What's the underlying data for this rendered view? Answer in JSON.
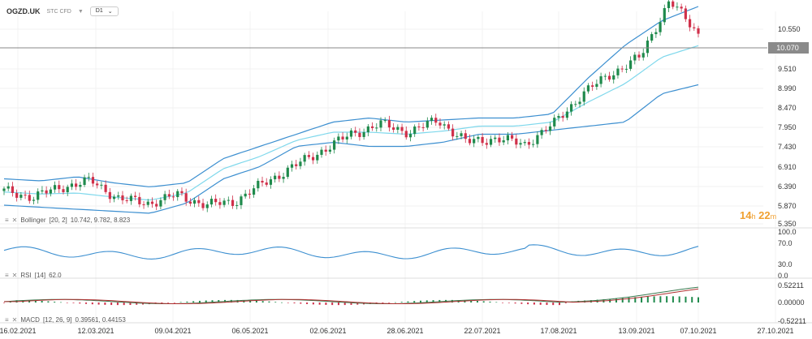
{
  "header": {
    "symbol": "OGZD.UK",
    "subtitle": "STC CFD",
    "timeframe": "D1"
  },
  "timer": {
    "hours": "14",
    "h": "h",
    "minutes": "22",
    "m": "m"
  },
  "current_price": "10.070",
  "price_axis": [
    "10.550",
    "10.070",
    "9.510",
    "8.990",
    "8.470",
    "7.950",
    "7.430",
    "6.910",
    "6.390",
    "5.870",
    "5.350"
  ],
  "rsi_axis": [
    "100.0",
    "70.0",
    "30.0",
    "0.0"
  ],
  "macd_axis": [
    "0.52211",
    "0.00000",
    "-0.52211"
  ],
  "dates": [
    "16.02.2021",
    "12.03.2021",
    "09.04.2021",
    "06.05.2021",
    "02.06.2021",
    "28.06.2021",
    "22.07.2021",
    "17.08.2021",
    "13.09.2021",
    "07.10.2021",
    "27.10.2021"
  ],
  "indicators": {
    "bollinger": {
      "name": "Bollinger",
      "params": "[20, 2]",
      "values": "10.742,  9.782,  8.823"
    },
    "rsi": {
      "name": "RSI",
      "params": "[14]",
      "values": "62.0"
    },
    "macd": {
      "name": "MACD",
      "params": "[12, 26, 9]",
      "values": "0.39561,  0.44153"
    }
  },
  "colors": {
    "up": "#1f8a4c",
    "down": "#d0304a",
    "band": "#3c8fd0",
    "mid": "#7fd8ec",
    "rsi": "#3c8fd0",
    "macd": "#3a7a50",
    "signal": "#b03030"
  },
  "chart_data": {
    "type": "candlestick",
    "symbol": "OGZD.UK",
    "ylim": [
      5.35,
      10.55
    ],
    "x": [
      "16.02.2021",
      "12.03.2021",
      "09.04.2021",
      "06.05.2021",
      "02.06.2021",
      "28.06.2021",
      "22.07.2021",
      "17.08.2021",
      "13.09.2021",
      "07.10.2021"
    ],
    "close_path": [
      6.2,
      6.05,
      6.3,
      6.45,
      6.0,
      5.9,
      6.1,
      5.85,
      5.95,
      6.4,
      6.8,
      7.2,
      7.6,
      7.85,
      7.65,
      7.95,
      7.4,
      7.5,
      7.35,
      7.85,
      8.6,
      9.1,
      9.5,
      10.9,
      10.07
    ],
    "upper_band": [
      6.5,
      6.45,
      6.55,
      6.4,
      6.3,
      6.4,
      7.0,
      7.3,
      7.6,
      7.9,
      8.0,
      7.9,
      7.95,
      8.0,
      8.0,
      8.1,
      9.0,
      9.8,
      10.4,
      10.75
    ],
    "lower_band": [
      5.85,
      5.8,
      5.75,
      5.7,
      5.65,
      5.9,
      6.5,
      6.8,
      7.3,
      7.4,
      7.3,
      7.3,
      7.4,
      7.6,
      7.6,
      7.7,
      7.8,
      7.9,
      8.6,
      8.82
    ]
  }
}
